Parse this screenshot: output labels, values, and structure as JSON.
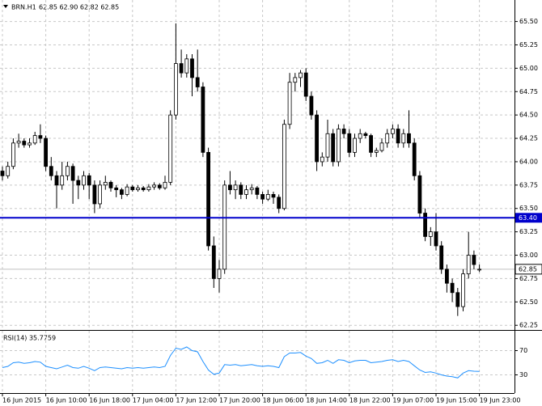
{
  "chart_data": [
    {
      "type": "candlestick",
      "symbol": "BRN.H1",
      "ohlc_label": "62.85 62.90 62.82 62.85",
      "categories": [
        "16 Jun 2015",
        null,
        null,
        null,
        null,
        null,
        null,
        null,
        "16 Jun 10:00",
        null,
        null,
        null,
        null,
        null,
        null,
        null,
        "16 Jun 18:00",
        null,
        null,
        null,
        null,
        null,
        null,
        null,
        "17 Jun 04:00",
        null,
        null,
        null,
        null,
        null,
        null,
        null,
        "17 Jun 12:00",
        null,
        null,
        null,
        null,
        null,
        null,
        null,
        "17 Jun 20:00",
        null,
        null,
        null,
        null,
        null,
        null,
        null,
        "18 Jun 06:00",
        null,
        null,
        null,
        null,
        null,
        null,
        null,
        "18 Jun 14:00",
        null,
        null,
        null,
        null,
        null,
        null,
        null,
        "18 Jun 22:00",
        null,
        null,
        null,
        null,
        null,
        null,
        null,
        "19 Jun 07:00",
        null,
        null,
        null,
        null,
        null,
        null,
        null,
        "19 Jun 15:00",
        null,
        null,
        null,
        null,
        null,
        null,
        null,
        "19 Jun 23:00"
      ],
      "open": [
        63.9,
        63.85,
        63.95,
        64.2,
        64.22,
        64.18,
        64.2,
        64.28,
        64.25,
        63.95,
        63.85,
        63.75,
        63.85,
        63.95,
        63.8,
        63.75,
        63.85,
        63.75,
        63.55,
        63.75,
        63.78,
        63.72,
        63.7,
        63.65,
        63.73,
        63.7,
        63.72,
        63.7,
        63.73,
        63.75,
        63.72,
        63.78,
        64.5,
        65.05,
        64.95,
        65.1,
        64.9,
        64.8,
        64.1,
        63.1,
        62.75,
        62.85,
        63.75,
        63.7,
        63.75,
        63.65,
        63.7,
        63.72,
        63.65,
        63.6,
        63.65,
        63.62,
        63.5,
        64.4,
        64.85,
        64.9,
        64.95,
        64.7,
        64.5,
        64.0,
        64.05,
        64.3,
        64.0,
        64.35,
        64.3,
        64.1,
        64.25,
        64.3,
        64.28,
        64.1,
        64.12,
        64.2,
        64.3,
        64.35,
        64.2,
        64.3,
        64.2,
        63.85,
        63.45,
        63.2,
        63.25,
        63.1,
        62.85,
        62.7,
        62.6,
        62.45,
        62.8,
        63.0,
        62.85
      ],
      "high": [
        63.95,
        64.0,
        64.25,
        64.3,
        64.25,
        64.25,
        64.32,
        64.4,
        64.28,
        64.05,
        63.9,
        64.0,
        64.0,
        63.98,
        63.85,
        63.9,
        63.88,
        63.8,
        63.8,
        63.85,
        63.8,
        63.75,
        63.72,
        63.76,
        63.75,
        63.75,
        63.74,
        63.76,
        63.78,
        63.77,
        63.85,
        64.55,
        65.48,
        65.2,
        65.15,
        65.15,
        65.2,
        64.85,
        64.15,
        63.2,
        62.95,
        63.8,
        63.9,
        63.8,
        63.78,
        63.75,
        63.76,
        63.74,
        63.68,
        63.7,
        63.68,
        63.65,
        64.45,
        64.95,
        64.95,
        64.98,
        65.0,
        64.75,
        64.55,
        64.1,
        64.45,
        64.35,
        64.4,
        64.4,
        64.35,
        64.3,
        64.35,
        64.32,
        64.3,
        64.15,
        64.25,
        64.35,
        64.4,
        64.4,
        64.35,
        64.55,
        64.25,
        63.9,
        63.5,
        63.3,
        63.45,
        63.15,
        62.9,
        62.75,
        62.65,
        62.85,
        63.25,
        63.05,
        62.9
      ],
      "low": [
        63.8,
        63.82,
        63.92,
        64.15,
        64.15,
        64.15,
        64.18,
        64.2,
        63.9,
        63.8,
        63.5,
        63.7,
        63.8,
        63.55,
        63.6,
        63.7,
        63.6,
        63.45,
        63.5,
        63.7,
        63.68,
        63.62,
        63.6,
        63.63,
        63.68,
        63.68,
        63.68,
        63.68,
        63.7,
        63.7,
        63.7,
        63.75,
        64.45,
        64.9,
        64.9,
        64.7,
        64.75,
        64.05,
        63.05,
        62.65,
        62.6,
        62.8,
        63.65,
        63.6,
        63.6,
        63.6,
        63.65,
        63.6,
        63.55,
        63.58,
        63.55,
        63.45,
        63.48,
        64.35,
        64.75,
        64.8,
        64.65,
        64.45,
        63.9,
        63.95,
        64.0,
        63.95,
        63.95,
        64.25,
        64.05,
        64.05,
        64.2,
        64.25,
        64.05,
        64.05,
        64.1,
        64.15,
        64.25,
        64.15,
        64.15,
        64.15,
        63.8,
        63.4,
        63.15,
        63.1,
        63.05,
        62.8,
        62.6,
        62.5,
        62.35,
        62.4,
        62.75,
        62.85,
        62.82
      ],
      "close": [
        63.85,
        63.95,
        64.2,
        64.22,
        64.18,
        64.2,
        64.28,
        64.25,
        63.95,
        63.85,
        63.75,
        63.85,
        63.95,
        63.8,
        63.75,
        63.85,
        63.75,
        63.55,
        63.75,
        63.78,
        63.72,
        63.7,
        63.65,
        63.73,
        63.7,
        63.72,
        63.7,
        63.73,
        63.75,
        63.72,
        63.78,
        64.5,
        65.05,
        64.95,
        65.1,
        64.9,
        64.8,
        64.1,
        63.1,
        62.75,
        62.85,
        63.75,
        63.7,
        63.75,
        63.65,
        63.7,
        63.72,
        63.65,
        63.6,
        63.65,
        63.62,
        63.5,
        64.4,
        64.85,
        64.9,
        64.95,
        64.7,
        64.5,
        64.0,
        64.05,
        64.3,
        64.0,
        64.35,
        64.3,
        64.1,
        64.25,
        64.3,
        64.28,
        64.1,
        64.12,
        64.2,
        64.3,
        64.35,
        64.2,
        64.3,
        64.2,
        63.85,
        63.45,
        63.2,
        63.25,
        63.1,
        62.85,
        62.7,
        62.6,
        62.45,
        62.8,
        63.0,
        62.9,
        62.85
      ],
      "up_color": "#ffffff",
      "down_color": "#000000",
      "ylim": [
        62.2,
        65.73
      ],
      "yticks": [
        {
          "value": 62.25,
          "label": "62.25"
        },
        {
          "value": 62.5,
          "label": "62.50"
        },
        {
          "value": 62.75,
          "label": "62.75"
        },
        {
          "value": 63,
          "label": "63.00"
        },
        {
          "value": 63.25,
          "label": "63.25"
        },
        {
          "value": 63.5,
          "label": "63.50"
        },
        {
          "value": 63.75,
          "label": "63.75"
        },
        {
          "value": 64,
          "label": "64.00"
        },
        {
          "value": 64.25,
          "label": "64.25"
        },
        {
          "value": 64.5,
          "label": "64.50"
        },
        {
          "value": 64.75,
          "label": "64.75"
        },
        {
          "value": 65,
          "label": "65.00"
        },
        {
          "value": 65.25,
          "label": "65.25"
        },
        {
          "value": 65.5,
          "label": "65.50"
        }
      ],
      "grid": true,
      "hline": {
        "value": 63.4,
        "label": "63.40",
        "color": "#0000cc"
      },
      "last_price": {
        "value": 62.85,
        "label": "62.85"
      }
    },
    {
      "type": "line",
      "title": "RSI(14) 35.7759",
      "color": "#1e90ff",
      "values": [
        42,
        44,
        50,
        51,
        49,
        50,
        52,
        51,
        44,
        42,
        40,
        43,
        46,
        42,
        41,
        44,
        41,
        37,
        42,
        43,
        42,
        41,
        40,
        42,
        41,
        42,
        41,
        42,
        43,
        42,
        44,
        62,
        74,
        72,
        76,
        70,
        68,
        52,
        38,
        31,
        33,
        47,
        46,
        47,
        45,
        46,
        47,
        45,
        44,
        45,
        44,
        42,
        60,
        66,
        66,
        67,
        61,
        57,
        49,
        50,
        54,
        49,
        55,
        54,
        50,
        53,
        54,
        54,
        50,
        51,
        52,
        54,
        55,
        52,
        54,
        52,
        45,
        38,
        34,
        35,
        33,
        30,
        28,
        27,
        25,
        33,
        37,
        36,
        35.7759
      ],
      "ylim": [
        0,
        100
      ],
      "yticks": [
        30,
        70
      ]
    }
  ]
}
